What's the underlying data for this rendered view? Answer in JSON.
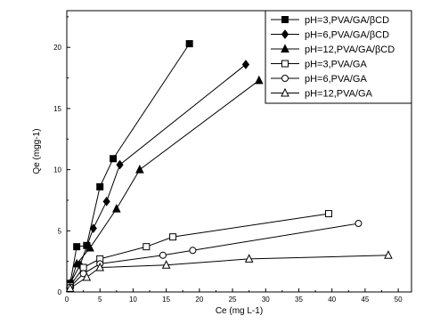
{
  "chart_data": {
    "type": "line",
    "title": "",
    "xlabel": "Ce (mg L-1)",
    "ylabel": "Qe (mgg-1)",
    "xlim": [
      0,
      52
    ],
    "ylim": [
      0,
      23
    ],
    "x_ticks": [
      0,
      5,
      10,
      15,
      20,
      25,
      30,
      35,
      40,
      45,
      50
    ],
    "y_ticks": [
      0,
      5,
      10,
      15,
      20
    ],
    "legend_position": "top-right",
    "grid": false,
    "series": [
      {
        "name": "pH=3,PVA/GA/βCD",
        "marker": "square-filled",
        "x": [
          0.5,
          1.5,
          3.0,
          5.0,
          7.0,
          18.5
        ],
        "y": [
          0.7,
          3.7,
          3.8,
          8.6,
          10.9,
          20.3
        ]
      },
      {
        "name": "pH=6,PVA/GA/βCD",
        "marker": "diamond-filled",
        "x": [
          0.5,
          2.0,
          4.0,
          6.0,
          8.0,
          27.0
        ],
        "y": [
          0.7,
          2.2,
          5.2,
          7.4,
          10.4,
          18.6
        ]
      },
      {
        "name": "pH=12,PVA/GA/βCD",
        "marker": "triangle-filled",
        "x": [
          0.5,
          1.5,
          3.5,
          7.5,
          11.0,
          29.0
        ],
        "y": [
          0.6,
          2.3,
          3.6,
          6.8,
          10.0,
          17.3
        ]
      },
      {
        "name": "pH=3,PVA/GA",
        "marker": "square-open",
        "x": [
          0.5,
          2.5,
          5.0,
          12.0,
          16.0,
          39.5
        ],
        "y": [
          0.5,
          2.0,
          2.7,
          3.7,
          4.5,
          6.4
        ]
      },
      {
        "name": "pH=6,PVA/GA",
        "marker": "circle-open",
        "x": [
          0.5,
          2.5,
          5.0,
          14.5,
          19.0,
          44.0
        ],
        "y": [
          0.4,
          1.5,
          2.3,
          3.0,
          3.4,
          5.6
        ]
      },
      {
        "name": "pH=12,PVA/GA",
        "marker": "triangle-open",
        "x": [
          0.5,
          3.0,
          5.0,
          15.0,
          27.5,
          48.5
        ],
        "y": [
          0.3,
          1.2,
          2.0,
          2.2,
          2.7,
          3.0
        ]
      }
    ]
  }
}
